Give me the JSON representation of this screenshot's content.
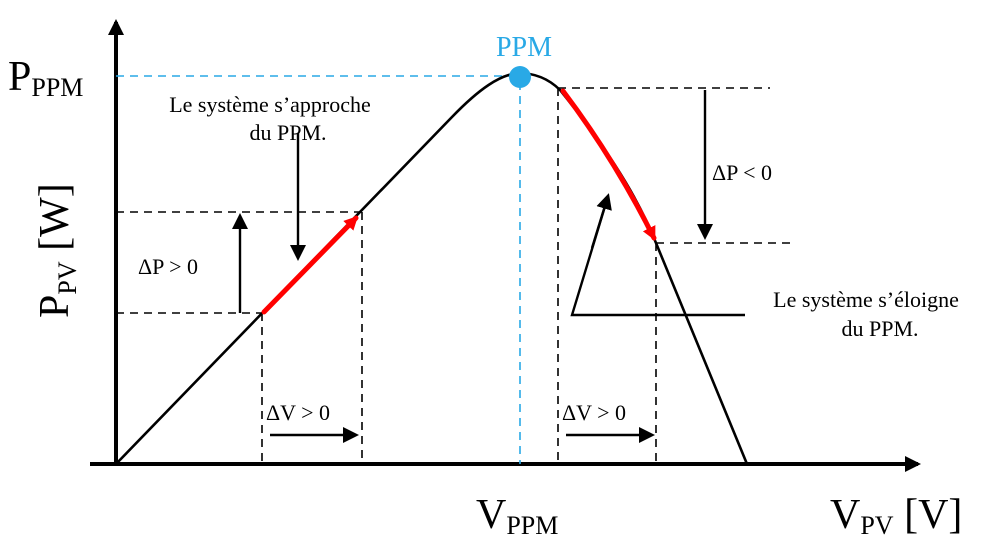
{
  "axes": {
    "y_label": {
      "main": "P",
      "sub": "PV",
      "unit": " [W]"
    },
    "x_label": {
      "main": "V",
      "sub": "PV",
      "unit": " [V]"
    }
  },
  "markers": {
    "p_ppm": {
      "main": "P",
      "sub": "PPM"
    },
    "v_ppm": {
      "main": "V",
      "sub": "PPM"
    },
    "ppm_point": "PPM"
  },
  "annotations": {
    "approach_line1": "Le système s’approche",
    "approach_line2": "du PPM.",
    "away_line1": "Le système s’éloigne",
    "away_line2": "du PPM.",
    "dp_pos": "ΔP > 0",
    "dp_neg": "ΔP < 0",
    "dv_pos_left": "ΔV > 0",
    "dv_pos_right": "ΔV > 0"
  },
  "colors": {
    "curve": "#000000",
    "highlight": "#ff0000",
    "ppm_point": "#29a9e6",
    "ppm_guides": "#29a9e6"
  }
}
